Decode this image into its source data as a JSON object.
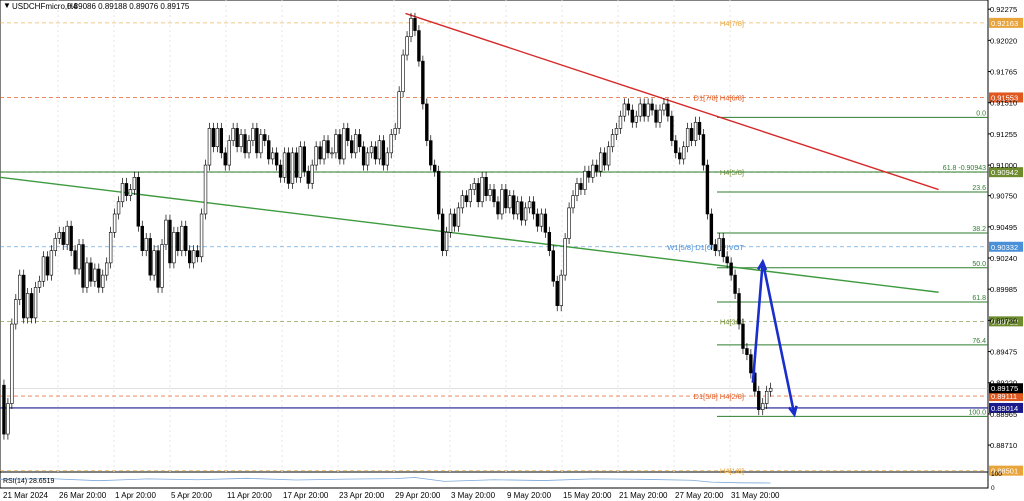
{
  "chart_data": {
    "type": "candlestick",
    "symbol_title": "USDCHFmicro,H4",
    "ohlc_text": "0.89086 0.89188 0.89076 0.89175",
    "y_ticks": [
      "0.92275",
      "0.92020",
      "0.91765",
      "0.91510",
      "0.91255",
      "0.91000",
      "0.90750",
      "0.90495",
      "0.90240",
      "0.89985",
      "0.89730",
      "0.89475",
      "0.89220",
      "0.88965",
      "0.88710"
    ],
    "ylim": [
      0.8849,
      0.9235
    ],
    "x_ticks": [
      "21 Mar 2024",
      "26 Mar 20:00",
      "1 Apr 20:00",
      "5 Apr 20:00",
      "11 Apr 20:00",
      "17 Apr 20:00",
      "23 Apr 20:00",
      "29 Apr 20:00",
      "3 May 20:00",
      "9 May 20:00",
      "15 May 20:00",
      "21 May 20:00",
      "27 May 20:00",
      "31 May 20:00"
    ],
    "murrey_levels": [
      {
        "label": "H4[7/8]",
        "value": 0.92163,
        "price_label": "0.92163",
        "color": "#e8a33a"
      },
      {
        "label": "D1[7/8] H4[6/8]",
        "value": 0.91553,
        "price_label": "0.91553",
        "color": "#e0581f"
      },
      {
        "label": "H4[5/8]",
        "value": 0.90942,
        "price_label": "0.90942",
        "color": "#6e8c2e"
      },
      {
        "label": "W1[5/8] D1[6/8] PIVOT",
        "value": 0.90332,
        "price_label": "0.90332",
        "color": "#4a90d9"
      },
      {
        "label": "H4[3/8]",
        "value": 0.89722,
        "price_label": "0.89722",
        "color": "#6e8c2e"
      },
      {
        "label": "D1[5/8] H4[2/8]",
        "value": 0.89111,
        "price_label": "0.89111",
        "color": "#e0581f"
      },
      {
        "label": "H4[1/8]",
        "value": 0.88501,
        "price_label": "0.88501",
        "color": "#e8a33a"
      }
    ],
    "fib_levels": [
      {
        "label": "0.0",
        "value": 0.9139
      },
      {
        "label": "61.8 -0.90943",
        "value": 0.90943
      },
      {
        "label": "23.6",
        "value": 0.9078
      },
      {
        "label": "38.2",
        "value": 0.90445
      },
      {
        "label": "50.0",
        "value": 0.9016
      },
      {
        "label": "61.8",
        "value": 0.8988
      },
      {
        "label": "76.4",
        "value": 0.8953
      },
      {
        "label": "100.0",
        "value": 0.88945
      }
    ],
    "current_price": {
      "label": "0.89175",
      "value": 0.89175
    },
    "horizontal_line": {
      "label": "0.89014",
      "value": 0.89014
    },
    "trendlines": [
      {
        "name": "resistance",
        "color": "#d62a2a",
        "from": [
          0.4104,
          0.9224
        ],
        "to": [
          0.95,
          0.908
        ]
      },
      {
        "name": "channel",
        "color": "#3e9a3e",
        "from": [
          0.0,
          0.909
        ],
        "to": [
          0.95,
          0.8996
        ]
      }
    ],
    "projection_path": [
      [
        0.762,
        0.8922
      ],
      [
        0.772,
        0.9021
      ],
      [
        0.804,
        0.8896
      ]
    ],
    "price_path": [
      [
        0.0,
        0.892
      ],
      [
        0.004,
        0.888
      ],
      [
        0.008,
        0.8905
      ],
      [
        0.012,
        0.897
      ],
      [
        0.016,
        0.899
      ],
      [
        0.02,
        0.901
      ],
      [
        0.024,
        0.8975
      ],
      [
        0.028,
        0.8995
      ],
      [
        0.032,
        0.8975
      ],
      [
        0.036,
        0.9
      ],
      [
        0.04,
        0.9005
      ],
      [
        0.044,
        0.9025
      ],
      [
        0.048,
        0.901
      ],
      [
        0.052,
        0.903
      ],
      [
        0.056,
        0.904
      ],
      [
        0.06,
        0.9045
      ],
      [
        0.064,
        0.9035
      ],
      [
        0.068,
        0.905
      ],
      [
        0.072,
        0.903
      ],
      [
        0.076,
        0.9015
      ],
      [
        0.08,
        0.9035
      ],
      [
        0.084,
        0.9
      ],
      [
        0.088,
        0.902
      ],
      [
        0.092,
        0.9005
      ],
      [
        0.096,
        0.9015
      ],
      [
        0.1,
        0.9
      ],
      [
        0.104,
        0.901
      ],
      [
        0.108,
        0.902
      ],
      [
        0.112,
        0.9045
      ],
      [
        0.116,
        0.906
      ],
      [
        0.12,
        0.907
      ],
      [
        0.124,
        0.9085
      ],
      [
        0.128,
        0.9075
      ],
      [
        0.132,
        0.908
      ],
      [
        0.136,
        0.909
      ],
      [
        0.14,
        0.905
      ],
      [
        0.144,
        0.903
      ],
      [
        0.148,
        0.904
      ],
      [
        0.152,
        0.901
      ],
      [
        0.156,
        0.903
      ],
      [
        0.16,
        0.9
      ],
      [
        0.164,
        0.9035
      ],
      [
        0.168,
        0.9055
      ],
      [
        0.172,
        0.902
      ],
      [
        0.176,
        0.9045
      ],
      [
        0.18,
        0.903
      ],
      [
        0.184,
        0.905
      ],
      [
        0.188,
        0.903
      ],
      [
        0.192,
        0.902
      ],
      [
        0.196,
        0.903
      ],
      [
        0.2,
        0.9025
      ],
      [
        0.204,
        0.906
      ],
      [
        0.208,
        0.91
      ],
      [
        0.212,
        0.913
      ],
      [
        0.216,
        0.9115
      ],
      [
        0.22,
        0.913
      ],
      [
        0.224,
        0.911
      ],
      [
        0.228,
        0.91
      ],
      [
        0.232,
        0.912
      ],
      [
        0.236,
        0.913
      ],
      [
        0.24,
        0.9115
      ],
      [
        0.244,
        0.9125
      ],
      [
        0.248,
        0.911
      ],
      [
        0.252,
        0.912
      ],
      [
        0.256,
        0.913
      ],
      [
        0.26,
        0.911
      ],
      [
        0.264,
        0.9125
      ],
      [
        0.268,
        0.912
      ],
      [
        0.272,
        0.9105
      ],
      [
        0.276,
        0.911
      ],
      [
        0.28,
        0.91
      ],
      [
        0.284,
        0.909
      ],
      [
        0.288,
        0.911
      ],
      [
        0.292,
        0.9085
      ],
      [
        0.296,
        0.911
      ],
      [
        0.3,
        0.909
      ],
      [
        0.304,
        0.9115
      ],
      [
        0.308,
        0.9095
      ],
      [
        0.312,
        0.9085
      ],
      [
        0.316,
        0.91
      ],
      [
        0.32,
        0.9115
      ],
      [
        0.324,
        0.9105
      ],
      [
        0.328,
        0.912
      ],
      [
        0.332,
        0.911
      ],
      [
        0.336,
        0.911
      ],
      [
        0.34,
        0.9125
      ],
      [
        0.344,
        0.9105
      ],
      [
        0.348,
        0.913
      ],
      [
        0.352,
        0.912
      ],
      [
        0.356,
        0.911
      ],
      [
        0.36,
        0.9125
      ],
      [
        0.364,
        0.9115
      ],
      [
        0.368,
        0.91
      ],
      [
        0.372,
        0.911
      ],
      [
        0.376,
        0.9115
      ],
      [
        0.38,
        0.9105
      ],
      [
        0.384,
        0.912
      ],
      [
        0.388,
        0.91
      ],
      [
        0.392,
        0.911
      ],
      [
        0.396,
        0.9125
      ],
      [
        0.4,
        0.913
      ],
      [
        0.404,
        0.916
      ],
      [
        0.408,
        0.919
      ],
      [
        0.412,
        0.9205
      ],
      [
        0.416,
        0.922
      ],
      [
        0.42,
        0.921
      ],
      [
        0.424,
        0.9185
      ],
      [
        0.428,
        0.915
      ],
      [
        0.432,
        0.912
      ],
      [
        0.436,
        0.91
      ],
      [
        0.44,
        0.9095
      ],
      [
        0.444,
        0.906
      ],
      [
        0.448,
        0.903
      ],
      [
        0.452,
        0.9045
      ],
      [
        0.456,
        0.906
      ],
      [
        0.46,
        0.905
      ],
      [
        0.464,
        0.9065
      ],
      [
        0.468,
        0.9075
      ],
      [
        0.472,
        0.907
      ],
      [
        0.476,
        0.908
      ],
      [
        0.48,
        0.9085
      ],
      [
        0.484,
        0.907
      ],
      [
        0.488,
        0.909
      ],
      [
        0.492,
        0.9075
      ],
      [
        0.496,
        0.908
      ],
      [
        0.5,
        0.907
      ],
      [
        0.504,
        0.906
      ],
      [
        0.508,
        0.908
      ],
      [
        0.512,
        0.9065
      ],
      [
        0.516,
        0.9075
      ],
      [
        0.52,
        0.906
      ],
      [
        0.524,
        0.907
      ],
      [
        0.528,
        0.9055
      ],
      [
        0.532,
        0.9065
      ],
      [
        0.536,
        0.907
      ],
      [
        0.54,
        0.906
      ],
      [
        0.544,
        0.905
      ],
      [
        0.548,
        0.906
      ],
      [
        0.552,
        0.9045
      ],
      [
        0.556,
        0.903
      ],
      [
        0.56,
        0.9005
      ],
      [
        0.564,
        0.8985
      ],
      [
        0.568,
        0.901
      ],
      [
        0.572,
        0.904
      ],
      [
        0.576,
        0.9065
      ],
      [
        0.58,
        0.9075
      ],
      [
        0.584,
        0.9085
      ],
      [
        0.588,
        0.908
      ],
      [
        0.592,
        0.9095
      ],
      [
        0.596,
        0.909
      ],
      [
        0.6,
        0.91
      ],
      [
        0.604,
        0.9095
      ],
      [
        0.608,
        0.911
      ],
      [
        0.612,
        0.91
      ],
      [
        0.616,
        0.9115
      ],
      [
        0.62,
        0.9125
      ],
      [
        0.624,
        0.913
      ],
      [
        0.628,
        0.914
      ],
      [
        0.632,
        0.915
      ],
      [
        0.636,
        0.9145
      ],
      [
        0.64,
        0.9135
      ],
      [
        0.644,
        0.914
      ],
      [
        0.648,
        0.915
      ],
      [
        0.652,
        0.914
      ],
      [
        0.656,
        0.915
      ],
      [
        0.66,
        0.9145
      ],
      [
        0.664,
        0.9135
      ],
      [
        0.668,
        0.9145
      ],
      [
        0.672,
        0.915
      ],
      [
        0.676,
        0.914
      ],
      [
        0.68,
        0.912
      ],
      [
        0.684,
        0.911
      ],
      [
        0.688,
        0.9105
      ],
      [
        0.692,
        0.9115
      ],
      [
        0.696,
        0.913
      ],
      [
        0.7,
        0.912
      ],
      [
        0.704,
        0.9135
      ],
      [
        0.708,
        0.9125
      ],
      [
        0.712,
        0.91
      ],
      [
        0.716,
        0.906
      ],
      [
        0.72,
        0.9035
      ],
      [
        0.724,
        0.903
      ],
      [
        0.728,
        0.904
      ],
      [
        0.732,
        0.9025
      ],
      [
        0.736,
        0.902
      ],
      [
        0.74,
        0.901
      ],
      [
        0.744,
        0.8995
      ],
      [
        0.748,
        0.897
      ],
      [
        0.752,
        0.895
      ],
      [
        0.756,
        0.8945
      ],
      [
        0.76,
        0.893
      ],
      [
        0.764,
        0.8915
      ],
      [
        0.768,
        0.89
      ],
      [
        0.772,
        0.8905
      ],
      [
        0.776,
        0.8915
      ],
      [
        0.78,
        0.89175
      ]
    ],
    "rsi_label": "RSI(14) 28.6519",
    "rsi_lines": [
      {
        "label": "100",
        "value": 100
      },
      {
        "label": "0",
        "value": 0
      }
    ],
    "rsi_path": [
      [
        0.0,
        55
      ],
      [
        0.05,
        60
      ],
      [
        0.1,
        45
      ],
      [
        0.15,
        58
      ],
      [
        0.2,
        52
      ],
      [
        0.25,
        62
      ],
      [
        0.3,
        50
      ],
      [
        0.35,
        56
      ],
      [
        0.4,
        60
      ],
      [
        0.42,
        68
      ],
      [
        0.45,
        40
      ],
      [
        0.5,
        52
      ],
      [
        0.55,
        46
      ],
      [
        0.6,
        58
      ],
      [
        0.65,
        55
      ],
      [
        0.7,
        48
      ],
      [
        0.72,
        35
      ],
      [
        0.75,
        30
      ],
      [
        0.78,
        28.65
      ]
    ]
  }
}
